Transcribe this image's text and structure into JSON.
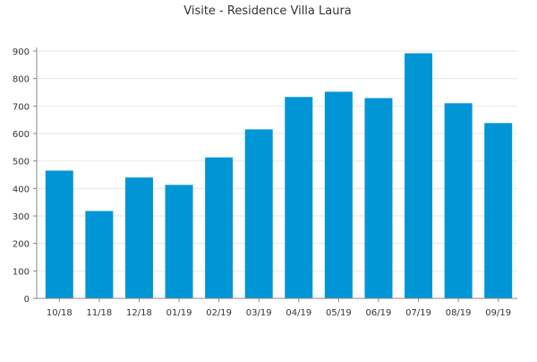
{
  "chart_data": {
    "type": "bar",
    "title": "Visite - Residence Villa Laura",
    "xlabel": "",
    "ylabel": "",
    "categories": [
      "10/18",
      "11/18",
      "12/18",
      "01/19",
      "02/19",
      "03/19",
      "04/19",
      "05/19",
      "06/19",
      "07/19",
      "08/19",
      "09/19"
    ],
    "values": [
      465,
      318,
      440,
      413,
      513,
      615,
      733,
      752,
      729,
      892,
      710,
      638
    ],
    "ylim": [
      0,
      900
    ],
    "yticks": [
      0,
      100,
      200,
      300,
      400,
      500,
      600,
      700,
      800,
      900
    ],
    "grid": true,
    "legend": "none",
    "bar_color": "#0096d6",
    "grid_color": "#e6e6e6",
    "axis_color": "#888888",
    "text_color": "#333333"
  }
}
